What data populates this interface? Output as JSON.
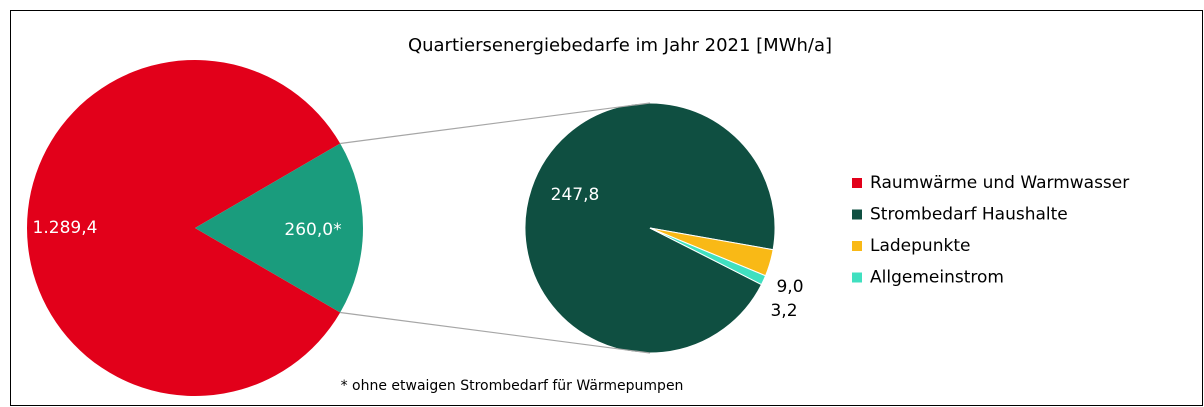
{
  "chart_data": {
    "type": "pie_of_pie",
    "title": "Quartiersenergiebedarfe im Jahr 2021 [MWh/a]",
    "categories": [
      "Raumwärme und Warmwasser",
      null
    ],
    "values": [
      1289.4,
      260.0
    ],
    "value_labels": [
      "1.289,4",
      "260,0*"
    ],
    "colors": [
      "#e2001a",
      "#1a9c7d"
    ],
    "detail": {
      "categories": [
        "Strombedarf Haushalte",
        "Ladepunkte",
        "Allgemeinstrom"
      ],
      "values": [
        247.8,
        9.0,
        3.2
      ],
      "value_labels": [
        "247,8",
        "9,0",
        "3,2"
      ],
      "colors": [
        "#0f4f41",
        "#f9b916",
        "#40e0c0"
      ]
    },
    "note": "* ohne etwaigen Strombedarf für Wärmepumpen"
  }
}
